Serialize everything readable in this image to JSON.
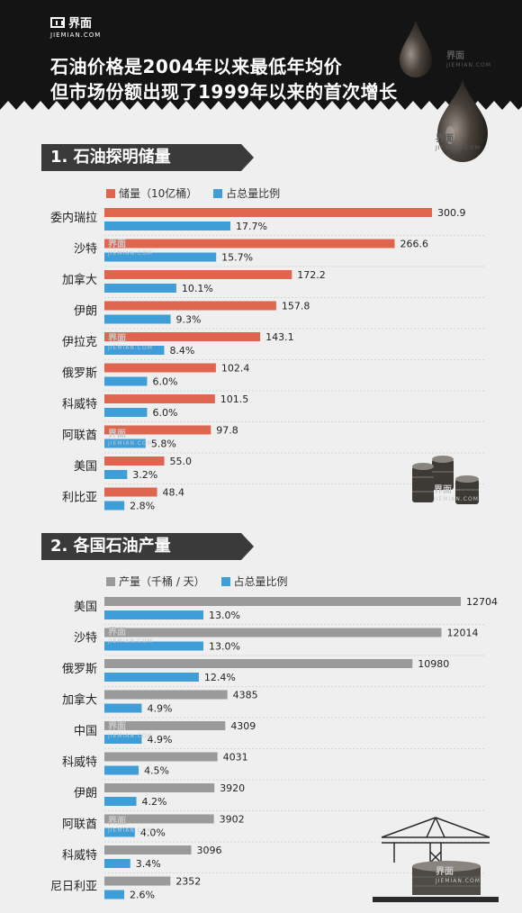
{
  "header": {
    "logo_cn": "界面",
    "logo_en": "JIEMIAN.COM",
    "title_line1": "石油价格是2004年以来最低年均价",
    "title_line2": "但市场份额出现了1999年以来的首次增长"
  },
  "watermark": {
    "cn": "界面",
    "en": "JIEMIAN.COM"
  },
  "colors": {
    "reserves": "#e0654e",
    "share": "#3f9ed8",
    "production": "#9a9a9a",
    "banner": "#3a3a3a",
    "header": "#141414"
  },
  "chart_data": [
    {
      "type": "bar",
      "title": "1. 石油探明储量",
      "categories": [
        "委内瑞拉",
        "沙特",
        "加拿大",
        "伊朗",
        "伊拉克",
        "俄罗斯",
        "科威特",
        "阿联酋",
        "美国",
        "利比亚"
      ],
      "series": [
        {
          "name": "储量（10亿桶）",
          "values": [
            300.9,
            266.6,
            172.2,
            157.8,
            143.1,
            102.4,
            101.5,
            97.8,
            55.0,
            48.4
          ],
          "labels": [
            "300.9",
            "266.6",
            "172.2",
            "157.8",
            "143.1",
            "102.4",
            "101.5",
            "97.8",
            "55.0",
            "48.4"
          ]
        },
        {
          "name": "占总量比例",
          "values": [
            17.7,
            15.7,
            10.1,
            9.3,
            8.4,
            6.0,
            6.0,
            5.8,
            3.2,
            2.8
          ],
          "labels": [
            "17.7%",
            "15.7%",
            "10.1%",
            "9.3%",
            "8.4%",
            "6.0%",
            "6.0%",
            "5.8%",
            "3.2%",
            "2.8%"
          ]
        }
      ],
      "orientation": "horizontal",
      "grid": false
    },
    {
      "type": "bar",
      "title": "2. 各国石油产量",
      "categories": [
        "美国",
        "沙特",
        "俄罗斯",
        "加拿大",
        "中国",
        "科威特",
        "伊朗",
        "阿联酋",
        "科威特",
        "尼日利亚"
      ],
      "series": [
        {
          "name": "产量（千桶 / 天）",
          "values": [
            12704,
            12014,
            10980,
            4385,
            4309,
            4031,
            3920,
            3902,
            3096,
            2352
          ],
          "labels": [
            "12704",
            "12014",
            "10980",
            "4385",
            "4309",
            "4031",
            "3920",
            "3902",
            "3096",
            "2352"
          ]
        },
        {
          "name": "占总量比例",
          "values": [
            13.0,
            13.0,
            12.4,
            4.9,
            4.9,
            4.5,
            4.2,
            4.0,
            3.4,
            2.6
          ],
          "labels": [
            "13.0%",
            "13.0%",
            "12.4%",
            "4.9%",
            "4.9%",
            "4.5%",
            "4.2%",
            "4.0%",
            "3.4%",
            "2.6%"
          ]
        }
      ],
      "orientation": "horizontal",
      "grid": false
    }
  ]
}
